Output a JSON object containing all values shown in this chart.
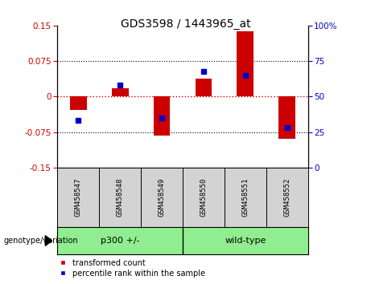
{
  "title": "GDS3598 / 1443965_at",
  "samples": [
    "GSM458547",
    "GSM458548",
    "GSM458549",
    "GSM458550",
    "GSM458551",
    "GSM458552"
  ],
  "transformed_counts": [
    -0.028,
    0.018,
    -0.083,
    0.038,
    0.138,
    -0.09
  ],
  "percentile_ranks": [
    33,
    58,
    35,
    68,
    65,
    28
  ],
  "group_labels": [
    "p300 +/-",
    "wild-type"
  ],
  "group_color": "#90EE90",
  "group_divider": 2.5,
  "bar_color": "#CC0000",
  "dot_color": "#0000CC",
  "ylim_left": [
    -0.15,
    0.15
  ],
  "ylim_right": [
    0,
    100
  ],
  "yticks_left": [
    -0.15,
    -0.075,
    0,
    0.075,
    0.15
  ],
  "yticks_right": [
    0,
    25,
    50,
    75,
    100
  ],
  "label_bg": "#d3d3d3",
  "legend_labels": [
    "transformed count",
    "percentile rank within the sample"
  ]
}
